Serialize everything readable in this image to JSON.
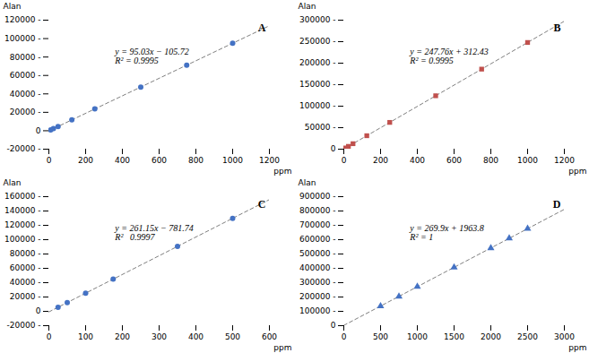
{
  "chart_data": [
    {
      "type": "scatter",
      "title": "A",
      "xlabel": "ppm",
      "ylabel": "Alan",
      "annotations": [
        "y = 95.03x − 105.72",
        "R² = 0.9995"
      ],
      "series": [
        {
          "type": "line",
          "color": "#7f7f7f",
          "line_style": "dashed",
          "x": [
            0,
            1200
          ],
          "values": [
            -105.72,
            113930.28
          ]
        },
        {
          "type": "scatter",
          "color": "#4472C4",
          "marker": "circle",
          "x": [
            10,
            25,
            50,
            125,
            250,
            500,
            750,
            1000
          ],
          "values": [
            844.58,
            2270.03,
            4645.78,
            11773.03,
            23651.78,
            47409.28,
            71166.78,
            94924.28
          ]
        }
      ],
      "xlim": [
        0,
        1200
      ],
      "xticks": [
        0,
        200,
        400,
        600,
        800,
        1000,
        1200
      ],
      "ylim": [
        -20000,
        120000
      ],
      "yticks": [
        {
          "value": -20000,
          "label": "-20000 -"
        },
        0,
        {
          "value": 20000,
          "label": "20000 -"
        },
        {
          "value": 40000,
          "label": "40000 -"
        },
        {
          "value": 60000,
          "label": "60000 -"
        },
        {
          "value": 80000,
          "label": "80000 -"
        },
        {
          "value": 100000,
          "label": "100000 -"
        },
        {
          "value": 120000,
          "label": "120000 -"
        }
      ],
      "grid": false
    },
    {
      "type": "scatter",
      "title": "B",
      "xlabel": "ppm",
      "ylabel": "Alan",
      "annotations": [
        "y = 247.76x + 312.43",
        "R² = 0.9995"
      ],
      "series": [
        {
          "type": "line",
          "color": "#7f7f7f",
          "line_style": "dashed",
          "x": [
            0,
            1200
          ],
          "values": [
            312.43,
            297624.43
          ]
        },
        {
          "type": "scatter",
          "color": "#C0504D",
          "marker": "square",
          "x": [
            10,
            25,
            50,
            125,
            250,
            500,
            750,
            1000
          ],
          "values": [
            2790.03,
            6506.43,
            12700.43,
            31282.43,
            62252.43,
            124192.43,
            186132.43,
            248072.43
          ]
        }
      ],
      "xlim": [
        0,
        1200
      ],
      "xticks": [
        0,
        200,
        400,
        600,
        800,
        1000,
        1200
      ],
      "ylim": [
        0,
        300000
      ],
      "yticks": [
        0,
        {
          "value": 50000,
          "label": "50000 -"
        },
        {
          "value": 100000,
          "label": "100000 -"
        },
        {
          "value": 150000,
          "label": "150000 -"
        },
        {
          "value": 200000,
          "label": "200000 -"
        },
        {
          "value": 250000,
          "label": "250000 -"
        },
        {
          "value": 300000,
          "label": "300000 -"
        }
      ],
      "grid": false
    },
    {
      "type": "scatter",
      "title": "C",
      "xlabel": "ppm",
      "ylabel": "Alan",
      "annotations": [
        "y = 261.15x − 781.74",
        "R²   0.9997"
      ],
      "series": [
        {
          "type": "line",
          "color": "#7f7f7f",
          "line_style": "dashed",
          "x": [
            0,
            600
          ],
          "values": [
            -781.74,
            155908.26
          ]
        },
        {
          "type": "scatter",
          "color": "#4472C4",
          "marker": "circle",
          "x": [
            25,
            50,
            100,
            175,
            350,
            500
          ],
          "values": [
            5747.01,
            12275.76,
            25333.26,
            44919.51,
            90620.76,
            129793.26
          ]
        }
      ],
      "xlim": [
        0,
        600
      ],
      "xticks": [
        0,
        100,
        200,
        300,
        400,
        500,
        600
      ],
      "ylim": [
        -20000,
        160000
      ],
      "yticks": [
        {
          "value": -20000,
          "label": "-20000 -"
        },
        0,
        {
          "value": 20000,
          "label": "20000 -"
        },
        {
          "value": 40000,
          "label": "40000 -"
        },
        {
          "value": 60000,
          "label": "60000 -"
        },
        {
          "value": 80000,
          "label": "80000 -"
        },
        {
          "value": 100000,
          "label": "100000 -"
        },
        {
          "value": 120000,
          "label": "120000 -"
        },
        {
          "value": 140000,
          "label": "140000 -"
        },
        {
          "value": 160000,
          "label": "160000 -"
        }
      ],
      "grid": false
    },
    {
      "type": "scatter",
      "title": "D",
      "xlabel": "ppm",
      "ylabel": "Alan",
      "annotations": [
        "y = 269.9x + 1963.8",
        "R² = 1"
      ],
      "series": [
        {
          "type": "line",
          "color": "#7f7f7f",
          "line_style": "dashed",
          "x": [
            0,
            3000
          ],
          "values": [
            1963.8,
            811663.8
          ]
        },
        {
          "type": "scatter",
          "color": "#4472C4",
          "marker": "triangle",
          "x": [
            500,
            750,
            1000,
            1500,
            2000,
            2250,
            2500
          ],
          "values": [
            136913.8,
            204388.8,
            271863.8,
            406813.8,
            541763.8,
            609238.8,
            676713.8
          ]
        }
      ],
      "xlim": [
        0,
        3000
      ],
      "xticks": [
        0,
        500,
        1000,
        1500,
        2000,
        2500,
        3000
      ],
      "ylim": [
        0,
        900000
      ],
      "yticks": [
        0,
        {
          "value": 100000,
          "label": "100000 -"
        },
        {
          "value": 200000,
          "label": "200000 -"
        },
        {
          "value": 300000,
          "label": "300000 -"
        },
        {
          "value": 400000,
          "label": "400000 -"
        },
        {
          "value": 500000,
          "label": "500000 -"
        },
        {
          "value": 600000,
          "label": "600000 -"
        },
        {
          "value": 700000,
          "label": "700000 -"
        },
        {
          "value": 800000,
          "label": "800000 -"
        },
        {
          "value": 900000,
          "label": "900000 -"
        }
      ],
      "grid": false
    }
  ]
}
